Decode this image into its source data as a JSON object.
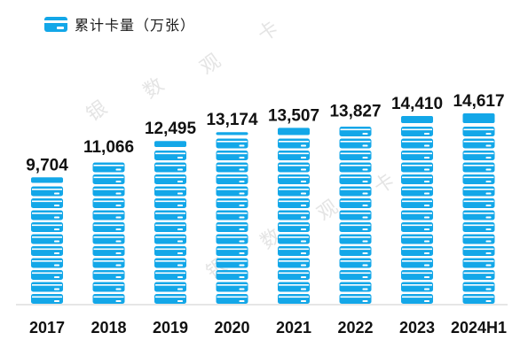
{
  "legend": {
    "label": "累计卡量（万张）"
  },
  "watermarks": [
    "银",
    "数",
    "观",
    "卡",
    "银",
    "数",
    "观",
    "卡"
  ],
  "colors": {
    "card": "#13A7E8",
    "card_stripe": "#ffffff",
    "axis": "#cccccc"
  },
  "chart_data": {
    "type": "bar",
    "title": "",
    "xlabel": "",
    "ylabel": "",
    "unit": "万张",
    "categories": [
      "2017",
      "2018",
      "2019",
      "2020",
      "2021",
      "2022",
      "2023",
      "2024H1"
    ],
    "values": [
      9704,
      11066,
      12495,
      13174,
      13507,
      13827,
      14410,
      14617
    ],
    "value_labels": [
      "9,704",
      "11,066",
      "12,495",
      "13,174",
      "13,507",
      "13,827",
      "14,410",
      "14,617"
    ],
    "ylim": [
      0,
      14617
    ],
    "grid": false,
    "legend_position": "top-left"
  }
}
